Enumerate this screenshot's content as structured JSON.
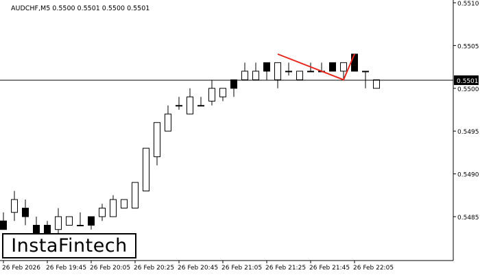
{
  "header": {
    "symbol_info": "AUDCHF,M5  0.5500 0.5501 0.5500 0.5501"
  },
  "logo": {
    "text": "InstaFintech"
  },
  "colors": {
    "bull_fill": "#ffffff",
    "bear_fill": "#000000",
    "pattern_line": "#e8261c",
    "price_line": "#000000",
    "axis": "#000000",
    "background": "#ffffff"
  },
  "chart_data": {
    "type": "candlestick",
    "symbol": "AUDCHF",
    "timeframe": "M5",
    "ylim": [
      0.548,
      0.551
    ],
    "y_ticks": [
      "0.5510",
      "0.5505",
      "0.5500",
      "0.5495",
      "0.5490",
      "0.5485"
    ],
    "x_ticks": [
      "26 Feb 2026",
      "26 Feb 19:45",
      "26 Feb 20:05",
      "26 Feb 20:25",
      "26 Feb 20:45",
      "26 Feb 21:05",
      "26 Feb 21:25",
      "26 Feb 21:45",
      "26 Feb 22:05"
    ],
    "current_price": "0.5501",
    "candles": [
      {
        "o": 0.54845,
        "h": 0.54855,
        "l": 0.54835,
        "c": 0.54835
      },
      {
        "o": 0.54855,
        "h": 0.5488,
        "l": 0.54845,
        "c": 0.5487
      },
      {
        "o": 0.5486,
        "h": 0.5487,
        "l": 0.5484,
        "c": 0.5485
      },
      {
        "o": 0.5484,
        "h": 0.5485,
        "l": 0.54825,
        "c": 0.5483
      },
      {
        "o": 0.5484,
        "h": 0.54845,
        "l": 0.54825,
        "c": 0.5483
      },
      {
        "o": 0.54835,
        "h": 0.5486,
        "l": 0.54825,
        "c": 0.5485
      },
      {
        "o": 0.5484,
        "h": 0.5485,
        "l": 0.5484,
        "c": 0.5485
      },
      {
        "o": 0.5484,
        "h": 0.54855,
        "l": 0.5484,
        "c": 0.5484
      },
      {
        "o": 0.5485,
        "h": 0.5485,
        "l": 0.54835,
        "c": 0.5484
      },
      {
        "o": 0.5485,
        "h": 0.54865,
        "l": 0.54845,
        "c": 0.5486
      },
      {
        "o": 0.5485,
        "h": 0.54875,
        "l": 0.5485,
        "c": 0.5487
      },
      {
        "o": 0.5486,
        "h": 0.5487,
        "l": 0.5486,
        "c": 0.5487
      },
      {
        "o": 0.5486,
        "h": 0.5489,
        "l": 0.5486,
        "c": 0.5489
      },
      {
        "o": 0.5488,
        "h": 0.5493,
        "l": 0.5488,
        "c": 0.5493
      },
      {
        "o": 0.5492,
        "h": 0.5496,
        "l": 0.5491,
        "c": 0.5496
      },
      {
        "o": 0.5495,
        "h": 0.5498,
        "l": 0.5495,
        "c": 0.5497
      },
      {
        "o": 0.5498,
        "h": 0.5499,
        "l": 0.54975,
        "c": 0.5498
      },
      {
        "o": 0.5497,
        "h": 0.55,
        "l": 0.5497,
        "c": 0.5499
      },
      {
        "o": 0.5498,
        "h": 0.5499,
        "l": 0.5498,
        "c": 0.5498
      },
      {
        "o": 0.54985,
        "h": 0.5501,
        "l": 0.5498,
        "c": 0.55
      },
      {
        "o": 0.5499,
        "h": 0.55,
        "l": 0.54985,
        "c": 0.55
      },
      {
        "o": 0.5501,
        "h": 0.5501,
        "l": 0.5499,
        "c": 0.55
      },
      {
        "o": 0.5501,
        "h": 0.5503,
        "l": 0.5501,
        "c": 0.5502
      },
      {
        "o": 0.5501,
        "h": 0.5503,
        "l": 0.5501,
        "c": 0.5502
      },
      {
        "o": 0.5503,
        "h": 0.5503,
        "l": 0.5501,
        "c": 0.5502
      },
      {
        "o": 0.5501,
        "h": 0.5503,
        "l": 0.55,
        "c": 0.5503
      },
      {
        "o": 0.5502,
        "h": 0.5503,
        "l": 0.55015,
        "c": 0.5502
      },
      {
        "o": 0.5501,
        "h": 0.5502,
        "l": 0.5501,
        "c": 0.5502
      },
      {
        "o": 0.5502,
        "h": 0.5503,
        "l": 0.5502,
        "c": 0.5502
      },
      {
        "o": 0.5502,
        "h": 0.5503,
        "l": 0.5502,
        "c": 0.5502
      },
      {
        "o": 0.5503,
        "h": 0.5503,
        "l": 0.5502,
        "c": 0.5502
      },
      {
        "o": 0.5502,
        "h": 0.5503,
        "l": 0.5501,
        "c": 0.5503
      },
      {
        "o": 0.5504,
        "h": 0.5504,
        "l": 0.5502,
        "c": 0.5502
      },
      {
        "o": 0.5502,
        "h": 0.5502,
        "l": 0.55,
        "c": 0.5502
      },
      {
        "o": 0.55,
        "h": 0.5501,
        "l": 0.55,
        "c": 0.5501
      }
    ],
    "pattern_line": [
      {
        "candle": 25,
        "price": 0.5504
      },
      {
        "candle": 31,
        "price": 0.5501
      },
      {
        "candle": 32,
        "price": 0.5504
      }
    ]
  }
}
